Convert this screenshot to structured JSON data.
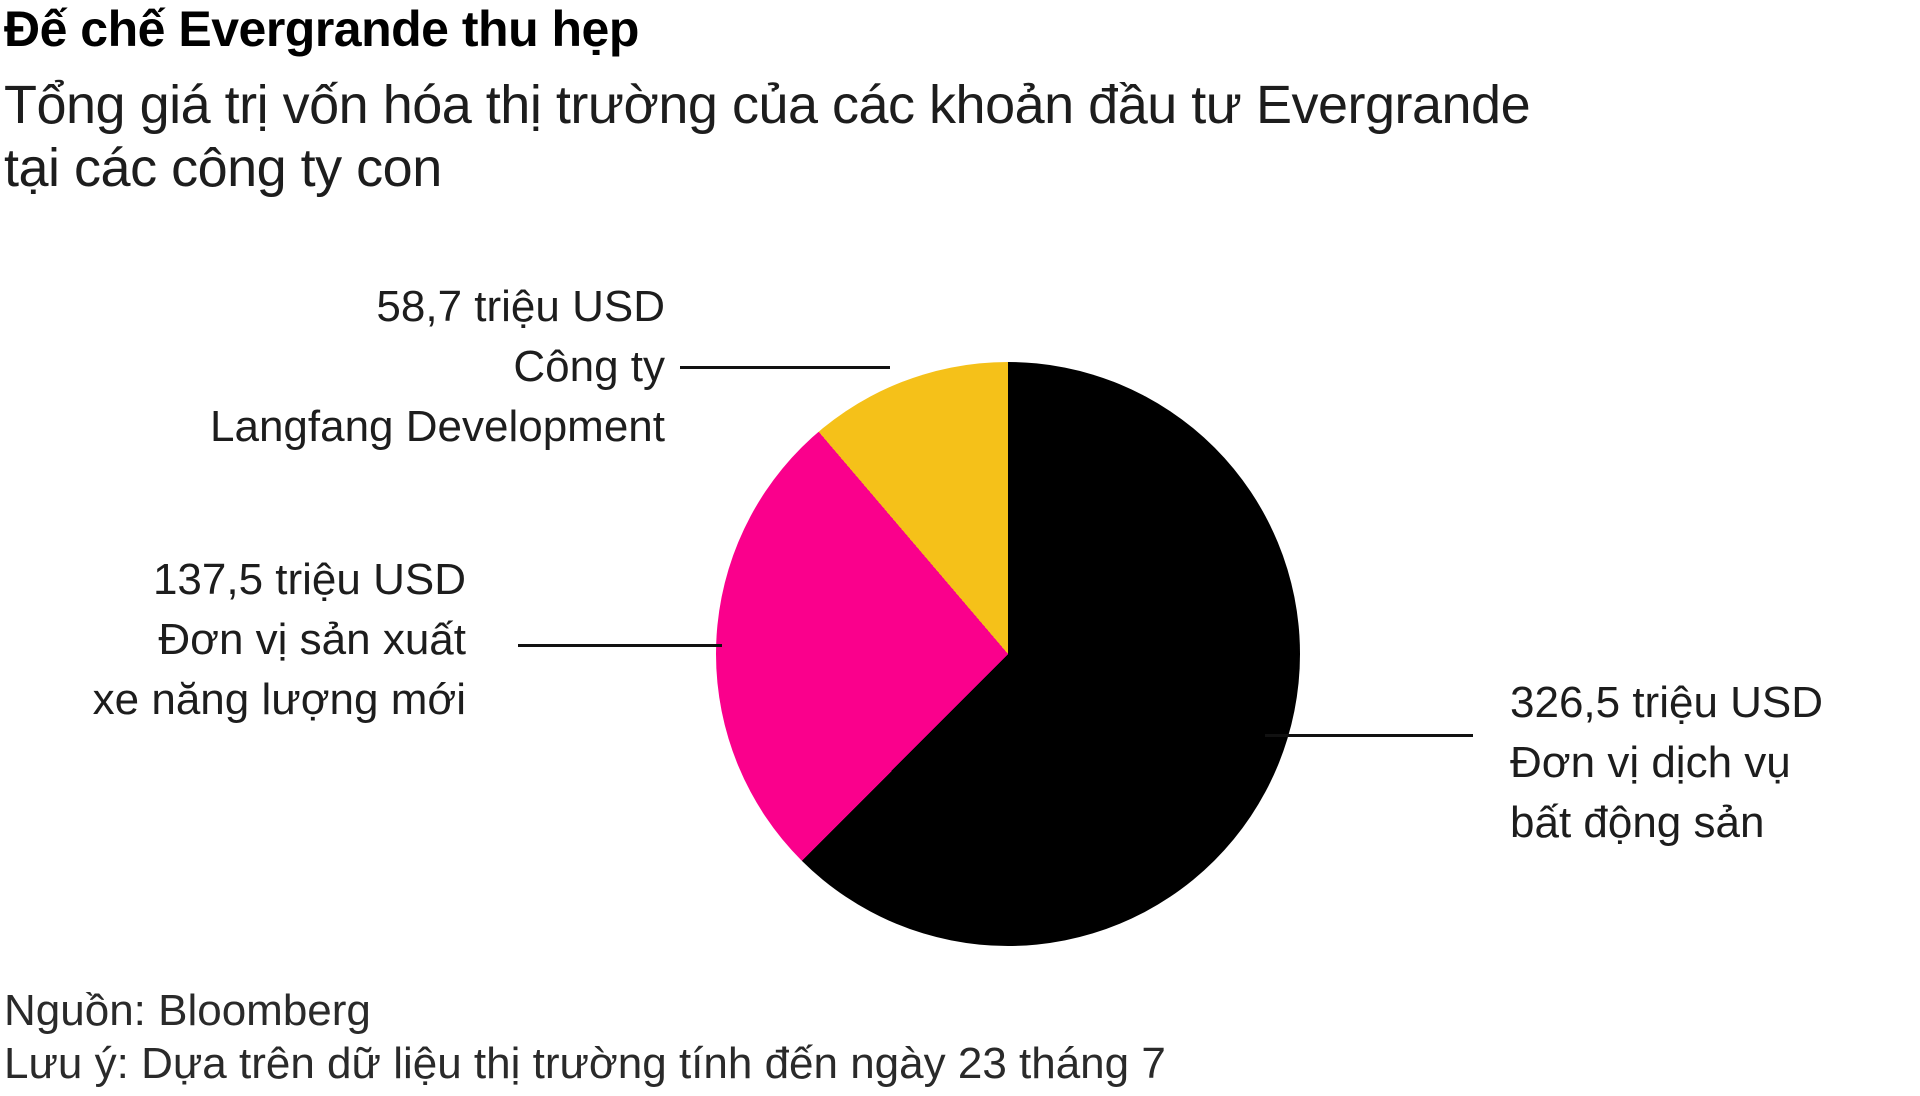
{
  "header": {
    "title": "Đế chế Evergrande thu hẹp",
    "subtitle_lines": [
      "Tổng giá trị vốn hóa thị trường của các khoản đầu tư Evergrande",
      "tại các công ty con"
    ]
  },
  "chart_data": {
    "type": "pie",
    "title": "Đế chế Evergrande thu hẹp",
    "subtitle": "Tổng giá trị vốn hóa thị trường của các khoản đầu tư Evergrande tại các công ty con",
    "unit": "triệu USD",
    "start_angle_deg": 0,
    "direction": "clockwise",
    "total": 522.7,
    "slices": [
      {
        "label": "Đơn vị dịch vụ bất động sản",
        "value": 326.5,
        "value_text": "326,5 triệu USD",
        "color": "#000000"
      },
      {
        "label": "Đơn vị sản xuất xe năng lượng mới",
        "value": 137.5,
        "value_text": "137,5 triệu USD",
        "color": "#FA008C"
      },
      {
        "label": "Công ty Langfang Development",
        "value": 58.7,
        "value_text": "58,7 triệu USD",
        "color": "#F5C119"
      }
    ]
  },
  "callouts": {
    "langfang": {
      "lines": [
        "58,7 triệu USD",
        "Công ty",
        "Langfang Development"
      ]
    },
    "nev": {
      "lines": [
        "137,5 triệu USD",
        "Đơn vị sản xuất",
        "xe năng lượng mới"
      ]
    },
    "property": {
      "lines": [
        "326,5 triệu USD",
        "Đơn vị dịch vụ",
        "bất động sản"
      ]
    }
  },
  "footer": {
    "source": "Nguồn: Bloomberg",
    "note": "Lưu ý: Dựa trên dữ liệu thị trường tính đến ngày 23 tháng 7"
  }
}
